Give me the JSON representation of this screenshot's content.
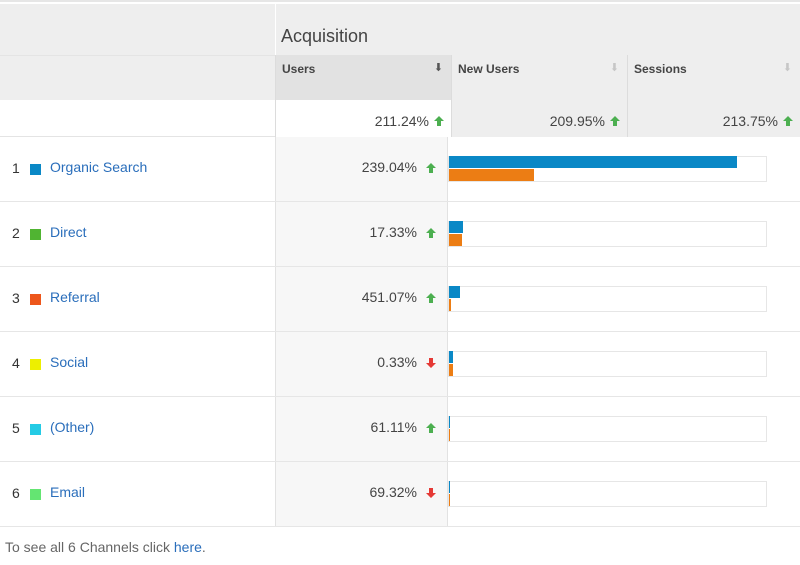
{
  "table": {
    "group_title": "Acquisition",
    "columns": [
      {
        "label": "Users",
        "sort_icon": "sort-down-arrow",
        "sorted": true
      },
      {
        "label": "New Users",
        "sort_icon": "sort-down-arrow",
        "sorted": false
      },
      {
        "label": "Sessions",
        "sort_icon": "sort-down-arrow",
        "sorted": false
      }
    ],
    "totals": [
      {
        "value": "211.24%",
        "trend": "up"
      },
      {
        "value": "209.95%",
        "trend": "up"
      },
      {
        "value": "213.75%",
        "trend": "up"
      }
    ],
    "rows": [
      {
        "rank": "1",
        "name": "Organic Search",
        "color": "#0a88c6",
        "users_change": "239.04%",
        "trend": "up",
        "bar1_pct": 90.9,
        "bar2_pct": 26.9
      },
      {
        "rank": "2",
        "name": "Direct",
        "color": "#50b432",
        "users_change": "17.33%",
        "trend": "up",
        "bar1_pct": 4.4,
        "bar2_pct": 4.0
      },
      {
        "rank": "3",
        "name": "Referral",
        "color": "#ed561b",
        "users_change": "451.07%",
        "trend": "up",
        "bar1_pct": 3.4,
        "bar2_pct": 0.5
      },
      {
        "rank": "4",
        "name": "Social",
        "color": "#edef00",
        "users_change": "0.33%",
        "trend": "down",
        "bar1_pct": 1.2,
        "bar2_pct": 1.2
      },
      {
        "rank": "5",
        "name": "(Other)",
        "color": "#24cbe5",
        "users_change": "61.11%",
        "trend": "up",
        "bar1_pct": 0.4,
        "bar2_pct": 0.4
      },
      {
        "rank": "6",
        "name": "Email",
        "color": "#64e572",
        "users_change": "69.32%",
        "trend": "down",
        "bar1_pct": 0.4,
        "bar2_pct": 0.4
      }
    ],
    "bar_colors": {
      "series1": "#0a88c6",
      "series2": "#ec7d14"
    },
    "trend_colors": {
      "up": "#4caf50",
      "down": "#e53935"
    }
  },
  "footer": {
    "text": "To see all 6 Channels click ",
    "link": "here",
    "suffix": "."
  }
}
